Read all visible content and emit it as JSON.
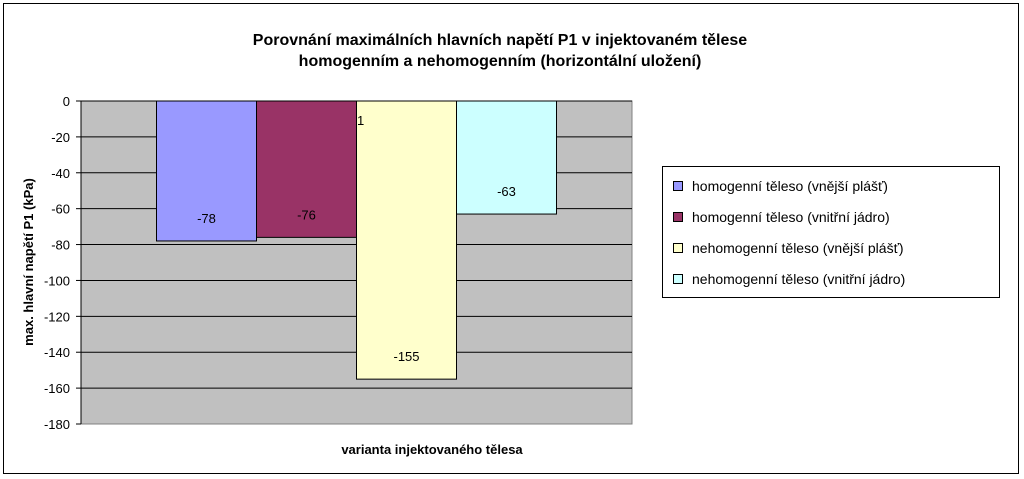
{
  "chart_data": {
    "type": "bar",
    "title": "Porovnání maximálních hlavních napětí P1 v injektovaném tělese",
    "subtitle": "homogenním a nehomogenním (horizontální uložení)",
    "xlabel": "varianta injektovaného tělesa",
    "ylabel": "max. hlavní napětí P1 (kPa)",
    "ylim": [
      -180,
      0
    ],
    "yticks": [
      0,
      -20,
      -40,
      -60,
      -80,
      -100,
      -120,
      -140,
      -160,
      -180
    ],
    "grid": true,
    "legend_position": "right",
    "plot_background": "#c0c0c0",
    "stray_label": "1",
    "series": [
      {
        "name": "homogenní těleso (vnější plášť)",
        "value": -78,
        "label": "-78",
        "color": "#9999ff"
      },
      {
        "name": "homogenní těleso (vnitřní jádro)",
        "value": -76,
        "label": "-76",
        "color": "#993366"
      },
      {
        "name": "nehomogenní těleso (vnější plášť)",
        "value": -155,
        "label": "-155",
        "color": "#ffffcc"
      },
      {
        "name": "nehomogenní těleso (vnitřní jádro)",
        "value": -63,
        "label": "-63",
        "color": "#ccffff"
      }
    ]
  }
}
